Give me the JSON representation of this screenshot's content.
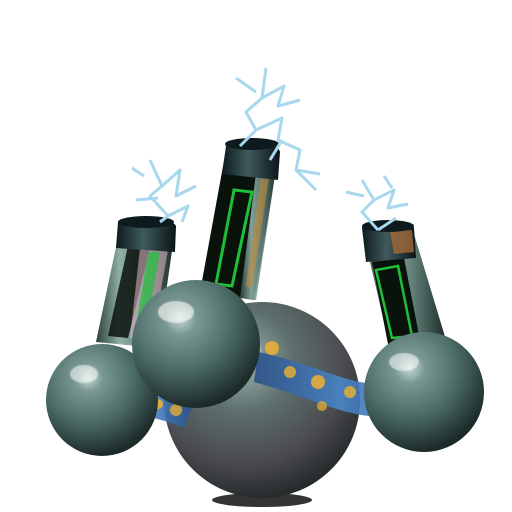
{
  "illustration": {
    "subject_icon": "molecule-with-battery-cells-icon",
    "parts": {
      "core_sphere": "core-sphere-icon",
      "side_spheres": [
        "left-sphere-icon",
        "front-sphere-icon",
        "right-sphere-icon"
      ],
      "cells": [
        "left-cell-icon",
        "center-cell-icon",
        "right-cell-icon"
      ],
      "sparks": [
        "left-spark-icon",
        "center-spark-icon",
        "right-spark-icon"
      ],
      "energy_bands": [
        "left-energy-band-icon",
        "right-energy-band-icon"
      ]
    },
    "colors": {
      "sphere": "#4e6e6a",
      "sphere_dark": "#1c2b2a",
      "cell_body": "#0a120c",
      "cell_glass": "#6f8f86",
      "cell_accent": "#1fbf3a",
      "energy_band": "#3a6fb0",
      "energy_dot": "#f0b030",
      "spark": "#a8d8ee"
    }
  }
}
